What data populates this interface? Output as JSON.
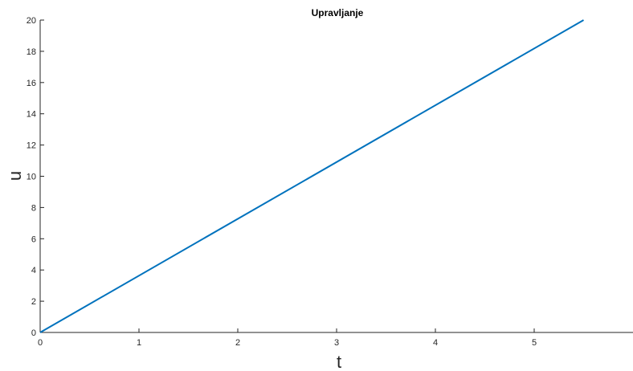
{
  "chart_data": {
    "type": "line",
    "title": "Upravljanje",
    "xlabel": "t",
    "ylabel": "u",
    "xlim": [
      0,
      6
    ],
    "ylim": [
      0,
      20
    ],
    "xticks": [
      0,
      1,
      2,
      3,
      4,
      5
    ],
    "yticks": [
      0,
      2,
      4,
      6,
      8,
      10,
      12,
      14,
      16,
      18,
      20
    ],
    "grid": false,
    "series": [
      {
        "color": "#0072BD",
        "x": [
          0,
          5.5
        ],
        "y": [
          0,
          20
        ]
      }
    ]
  }
}
